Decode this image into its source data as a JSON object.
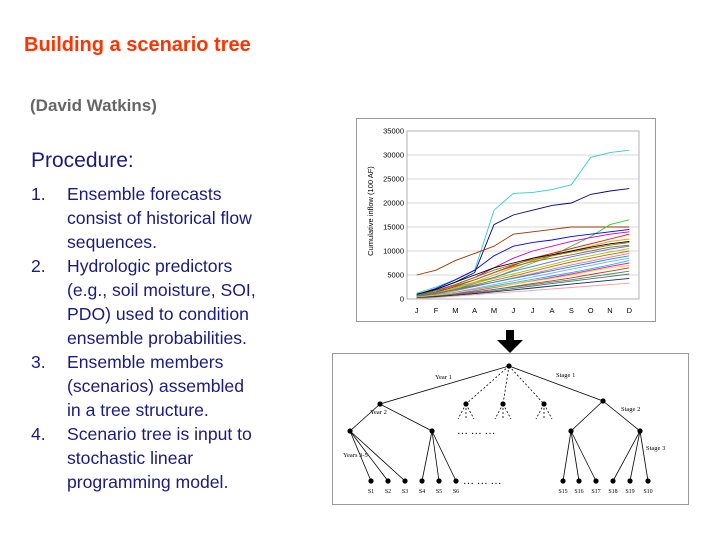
{
  "slide": {
    "title": "Building a scenario tree",
    "author": "(David Watkins)",
    "procedure_heading": "Procedure:",
    "steps": [
      {
        "num": "1.",
        "lines": [
          "Ensemble forecasts",
          "consist of historical flow",
          "sequences."
        ]
      },
      {
        "num": "2.",
        "lines": [
          "Hydrologic predictors",
          "(e.g., soil moisture, SOI,",
          "PDO) used to condition",
          "ensemble probabilities."
        ]
      },
      {
        "num": "3.",
        "lines": [
          "Ensemble members",
          "(scenarios) assembled",
          "in a tree structure."
        ]
      },
      {
        "num": "4.",
        "lines": [
          "Scenario tree is input to",
          "stochastic linear",
          "programming model."
        ]
      }
    ]
  },
  "chart_data": {
    "type": "line",
    "ylabel": "Cumulative inflow (100 AF)",
    "xlabel": "",
    "categories": [
      "J",
      "F",
      "M",
      "A",
      "M",
      "J",
      "J",
      "A",
      "S",
      "O",
      "N",
      "D"
    ],
    "ylim": [
      0,
      35000
    ],
    "yticks": [
      0,
      5000,
      10000,
      15000,
      20000,
      25000,
      30000,
      35000
    ],
    "grid": "horizontal",
    "legend": "none",
    "series": [
      {
        "color": "#33cccc",
        "values": [
          1200,
          2500,
          4000,
          6000,
          18500,
          22000,
          22200,
          22800,
          23800,
          29500,
          30500,
          31000
        ]
      },
      {
        "color": "#000080",
        "values": [
          800,
          2000,
          3500,
          5500,
          15500,
          17500,
          18500,
          19500,
          20000,
          21800,
          22500,
          23000
        ]
      },
      {
        "color": "#993300",
        "values": [
          5000,
          6000,
          8000,
          9500,
          11000,
          13500,
          14000,
          14500,
          15000,
          15000,
          15000,
          15000
        ]
      },
      {
        "color": "#33cc33",
        "values": [
          600,
          1500,
          2500,
          3500,
          4500,
          6000,
          7500,
          9000,
          11000,
          13000,
          15500,
          16500
        ]
      },
      {
        "color": "#0000ff",
        "values": [
          900,
          2200,
          4000,
          6000,
          9000,
          11000,
          11800,
          12300,
          13000,
          13500,
          14000,
          14500
        ]
      },
      {
        "color": "#cc00cc",
        "values": [
          700,
          1800,
          3000,
          4500,
          6500,
          8500,
          10000,
          11000,
          12000,
          12800,
          13500,
          14000
        ]
      },
      {
        "color": "#ff0000",
        "values": [
          500,
          1400,
          2600,
          4000,
          5500,
          7000,
          8500,
          9500,
          10500,
          11500,
          12500,
          13500
        ]
      },
      {
        "color": "#ff9900",
        "values": [
          400,
          1200,
          2200,
          3500,
          5000,
          6500,
          8000,
          9000,
          10000,
          11000,
          12000,
          12500
        ]
      },
      {
        "color": "#000000",
        "values": [
          1000,
          2000,
          3500,
          5000,
          6500,
          7500,
          8500,
          9200,
          10000,
          10800,
          11500,
          12000
        ]
      },
      {
        "color": "#808000",
        "values": [
          600,
          1500,
          3000,
          4500,
          6000,
          7200,
          8200,
          9000,
          9800,
          10500,
          11200,
          11800
        ]
      },
      {
        "color": "#996633",
        "values": [
          800,
          1800,
          2800,
          4000,
          5500,
          6800,
          7800,
          8500,
          9200,
          10000,
          10800,
          11200
        ]
      },
      {
        "color": "#6666ff",
        "values": [
          300,
          1000,
          2000,
          3200,
          4500,
          5800,
          6800,
          7800,
          8800,
          9600,
          10400,
          11000
        ]
      },
      {
        "color": "#99cc00",
        "values": [
          500,
          1300,
          2300,
          3300,
          4300,
          5200,
          6200,
          7200,
          8200,
          9000,
          9800,
          10500
        ]
      },
      {
        "color": "#cc6600",
        "values": [
          400,
          1100,
          2000,
          2900,
          3900,
          4800,
          5800,
          6800,
          7700,
          8500,
          9300,
          10000
        ]
      },
      {
        "color": "#ff6699",
        "values": [
          300,
          900,
          1700,
          2600,
          3500,
          4400,
          5300,
          6200,
          7100,
          7900,
          8700,
          9500
        ]
      },
      {
        "color": "#0099cc",
        "values": [
          600,
          1200,
          1900,
          2700,
          3500,
          4300,
          5100,
          5900,
          6700,
          7500,
          8300,
          9000
        ]
      },
      {
        "color": "#9999ff",
        "values": [
          200,
          700,
          1400,
          2200,
          3000,
          3800,
          4600,
          5400,
          6200,
          7000,
          7800,
          8500
        ]
      },
      {
        "color": "#00cccc",
        "values": [
          300,
          800,
          1400,
          2000,
          2700,
          3400,
          4100,
          4800,
          5500,
          6300,
          7100,
          8000
        ]
      },
      {
        "color": "#ff00ff",
        "values": [
          200,
          600,
          1100,
          1700,
          2400,
          3100,
          3800,
          4500,
          5200,
          6000,
          6800,
          7500
        ]
      },
      {
        "color": "#ffcc00",
        "values": [
          400,
          800,
          1300,
          1900,
          2500,
          3100,
          3700,
          4300,
          5000,
          5800,
          6500,
          7000
        ]
      },
      {
        "color": "#cc3333",
        "values": [
          200,
          500,
          900,
          1400,
          2000,
          2600,
          3200,
          3800,
          4400,
          5100,
          5800,
          6500
        ]
      },
      {
        "color": "#339966",
        "values": [
          300,
          600,
          1000,
          1500,
          2000,
          2500,
          3000,
          3500,
          4000,
          4600,
          5200,
          5800
        ]
      },
      {
        "color": "#666666",
        "values": [
          100,
          400,
          800,
          1200,
          1700,
          2200,
          2700,
          3200,
          3700,
          4200,
          4700,
          5200
        ]
      },
      {
        "color": "#003366",
        "values": [
          200,
          500,
          800,
          1100,
          1500,
          1900,
          2300,
          2700,
          3100,
          3500,
          3900,
          4300
        ]
      },
      {
        "color": "#ff9999",
        "values": [
          100,
          300,
          600,
          900,
          1200,
          1500,
          1800,
          2100,
          2400,
          2700,
          3000,
          3300
        ]
      }
    ]
  },
  "tree": {
    "labels": {
      "year1": "Year 1",
      "stage1": "Stage 1",
      "year2": "Year 2",
      "stage2": "Stage 2",
      "stage3": "Stage 3",
      "years35": "Years 3-5",
      "dots_mid": "… … …",
      "dots_bottom": "… … …"
    },
    "leaves_left": [
      "S1",
      "S2",
      "S3",
      "S4",
      "S5",
      "S6"
    ],
    "leaves_right": [
      "S15",
      "S16",
      "S17",
      "S18",
      "S19",
      "S10"
    ]
  }
}
